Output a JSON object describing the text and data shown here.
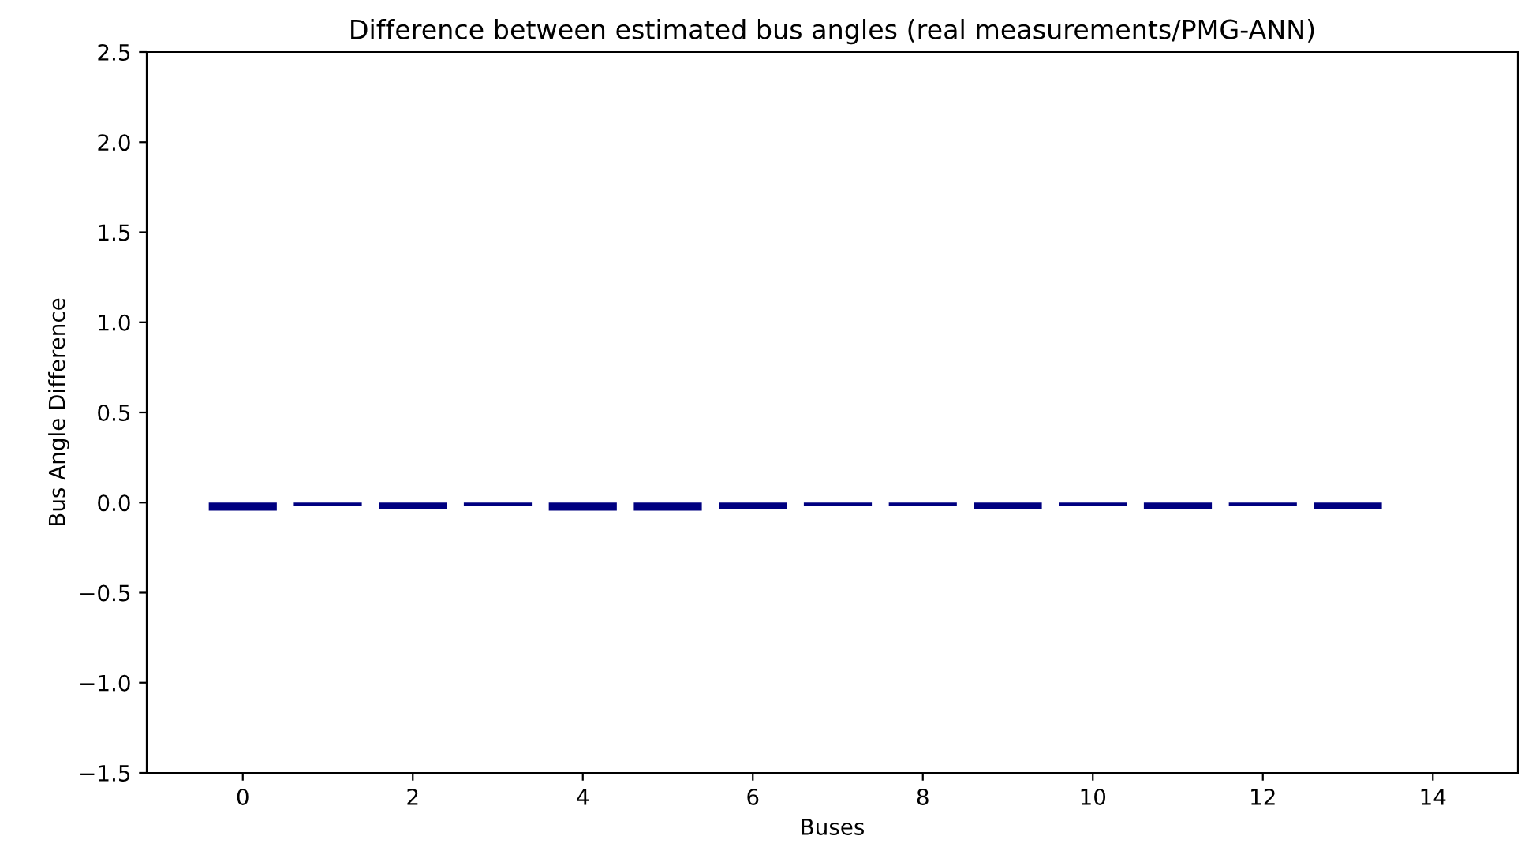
{
  "chart_data": {
    "type": "bar",
    "title": "Difference between estimated bus angles (real measurements/PMG-ANN)",
    "xlabel": "Buses",
    "ylabel": "Bus Angle Difference",
    "x": [
      0,
      1,
      2,
      3,
      4,
      5,
      6,
      7,
      8,
      9,
      10,
      11,
      12,
      13
    ],
    "values": [
      -0.045,
      -0.02,
      -0.035,
      -0.02,
      -0.045,
      -0.045,
      -0.035,
      -0.02,
      -0.02,
      -0.035,
      -0.02,
      -0.035,
      -0.02,
      -0.035
    ],
    "color": "#000080",
    "xlim": [
      -1.13,
      15.0
    ],
    "xticks": [
      0,
      2,
      4,
      6,
      8,
      10,
      12,
      14
    ],
    "ylim": [
      -1.5,
      2.5
    ],
    "yticks": [
      {
        "value": -1.5,
        "label": "−1.5"
      },
      {
        "value": -1.0,
        "label": "−1.0"
      },
      {
        "value": -0.5,
        "label": "−0.5"
      },
      {
        "value": 0.0,
        "label": "0.0"
      },
      {
        "value": 0.5,
        "label": "0.5"
      },
      {
        "value": 1.0,
        "label": "1.0"
      },
      {
        "value": 1.5,
        "label": "1.5"
      },
      {
        "value": 2.0,
        "label": "2.0"
      },
      {
        "value": 2.5,
        "label": "2.5"
      }
    ],
    "grid": false,
    "legend": false
  }
}
